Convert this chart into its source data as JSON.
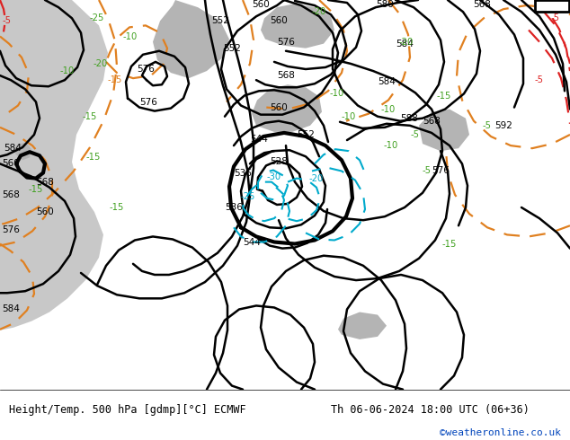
{
  "title_left": "Height/Temp. 500 hPa [gdmp][°C] ECMWF",
  "title_right": "Th 06-06-2024 18:00 UTC (06+36)",
  "credit": "©weatheronline.co.uk",
  "bg_ocean": "#c8c8c8",
  "bg_land_green": "#b8d4a0",
  "bg_land_gray": "#b4b4b4",
  "contour_height_color": "#000000",
  "contour_temp_orange": "#e08020",
  "contour_temp_cyan": "#00aacc",
  "contour_temp_red": "#dd2222",
  "label_height_color": "#000000",
  "label_temp_green": "#40a020",
  "label_temp_cyan": "#00aacc",
  "label_temp_red": "#dd2222",
  "footer_bg": "#ffffff",
  "credit_color": "#0044bb",
  "fig_width": 6.34,
  "fig_height": 4.9,
  "dpi": 100
}
